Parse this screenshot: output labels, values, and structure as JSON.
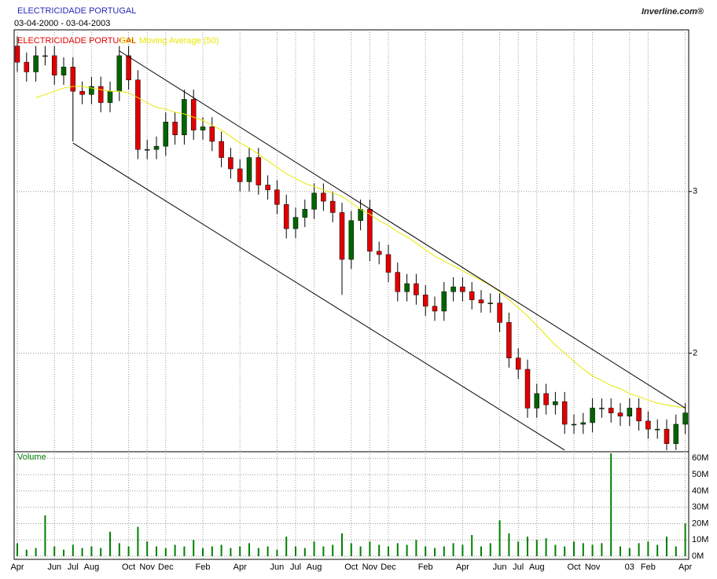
{
  "chart_data": {
    "type": "candlestick",
    "title": "ELECTRICIDADE PORTUGAL",
    "subtitle": "03-04-2000 - 03-04-2003",
    "brand": "Inverline.com®",
    "grid": true,
    "categories": [
      "Apr",
      null,
      null,
      null,
      "Jun",
      null,
      "Jul",
      null,
      "Aug",
      null,
      null,
      null,
      "Oct",
      null,
      "Nov",
      null,
      "Dec",
      null,
      null,
      null,
      "Feb",
      null,
      null,
      null,
      "Apr",
      null,
      null,
      null,
      "Jun",
      null,
      "Jul",
      null,
      "Aug",
      null,
      null,
      null,
      "Oct",
      null,
      "Nov",
      null,
      "Dec",
      null,
      null,
      null,
      "Feb",
      null,
      null,
      null,
      "Apr",
      null,
      null,
      null,
      "Jun",
      null,
      "Jul",
      null,
      "Aug",
      null,
      null,
      null,
      "Oct",
      null,
      "Nov",
      null,
      null,
      null,
      "03",
      null,
      "Feb",
      null,
      null,
      null,
      "Apr"
    ],
    "series": [
      {
        "name": "ELECTRICIDADE PORTUGAL",
        "up_color": "#006400",
        "down_color": "#e00000",
        "label_color": "#e00000",
        "open": [
          3.9,
          3.8,
          3.74,
          3.84,
          3.84,
          3.72,
          3.77,
          3.62,
          3.6,
          3.65,
          3.55,
          3.62,
          3.84,
          3.69,
          3.26,
          3.26,
          3.28,
          3.43,
          3.35,
          3.57,
          3.38,
          3.4,
          3.31,
          3.21,
          3.14,
          3.06,
          3.21,
          3.04,
          3.01,
          2.92,
          2.77,
          2.84,
          2.89,
          2.99,
          2.94,
          2.87,
          2.58,
          2.82,
          2.89,
          2.63,
          2.61,
          2.5,
          2.38,
          2.43,
          2.36,
          2.29,
          2.26,
          2.38,
          2.41,
          2.38,
          2.33,
          2.31,
          2.31,
          2.19,
          1.97,
          1.9,
          1.66,
          1.75,
          1.68,
          1.7,
          1.56,
          1.56,
          1.57,
          1.66,
          1.66,
          1.63,
          1.61,
          1.66,
          1.58,
          1.53,
          1.53,
          1.44,
          1.56
        ],
        "high": [
          3.96,
          3.86,
          3.9,
          3.9,
          3.9,
          3.83,
          3.83,
          3.68,
          3.71,
          3.71,
          3.68,
          3.9,
          3.9,
          3.75,
          3.32,
          3.34,
          3.49,
          3.49,
          3.63,
          3.63,
          3.46,
          3.46,
          3.37,
          3.27,
          3.2,
          3.27,
          3.27,
          3.1,
          3.07,
          2.98,
          2.9,
          2.95,
          3.05,
          3.05,
          3.0,
          2.93,
          2.88,
          2.95,
          2.95,
          2.69,
          2.67,
          2.56,
          2.49,
          2.49,
          2.42,
          2.35,
          2.44,
          2.47,
          2.47,
          2.44,
          2.39,
          2.37,
          2.37,
          2.25,
          2.03,
          1.96,
          1.81,
          1.81,
          1.76,
          1.76,
          1.62,
          1.63,
          1.72,
          1.72,
          1.72,
          1.69,
          1.72,
          1.72,
          1.64,
          1.59,
          1.59,
          1.62,
          1.69
        ],
        "low": [
          3.74,
          3.68,
          3.68,
          3.78,
          3.66,
          3.66,
          3.31,
          3.54,
          3.54,
          3.49,
          3.49,
          3.56,
          3.63,
          3.2,
          3.2,
          3.2,
          3.22,
          3.29,
          3.29,
          3.32,
          3.32,
          3.25,
          3.15,
          3.08,
          3.0,
          3.0,
          2.98,
          2.95,
          2.86,
          2.71,
          2.71,
          2.78,
          2.83,
          2.88,
          2.81,
          2.36,
          2.52,
          2.76,
          2.57,
          2.55,
          2.44,
          2.32,
          2.32,
          2.3,
          2.23,
          2.2,
          2.2,
          2.32,
          2.32,
          2.27,
          2.25,
          2.25,
          2.13,
          1.91,
          1.84,
          1.6,
          1.6,
          1.62,
          1.62,
          1.5,
          1.5,
          1.5,
          1.51,
          1.6,
          1.57,
          1.55,
          1.55,
          1.52,
          1.47,
          1.47,
          1.4,
          1.4,
          1.5
        ],
        "close": [
          3.8,
          3.74,
          3.84,
          3.84,
          3.72,
          3.77,
          3.62,
          3.6,
          3.65,
          3.55,
          3.62,
          3.84,
          3.69,
          3.26,
          3.26,
          3.28,
          3.43,
          3.35,
          3.57,
          3.38,
          3.4,
          3.31,
          3.21,
          3.14,
          3.06,
          3.21,
          3.04,
          3.01,
          2.92,
          2.77,
          2.84,
          2.89,
          2.99,
          2.94,
          2.87,
          2.58,
          2.82,
          2.89,
          2.63,
          2.61,
          2.5,
          2.38,
          2.43,
          2.36,
          2.29,
          2.26,
          2.38,
          2.41,
          2.38,
          2.33,
          2.31,
          2.31,
          2.19,
          1.97,
          1.9,
          1.66,
          1.75,
          1.68,
          1.7,
          1.56,
          1.56,
          1.57,
          1.66,
          1.66,
          1.63,
          1.61,
          1.66,
          1.58,
          1.53,
          1.53,
          1.44,
          1.56,
          1.63
        ]
      },
      {
        "name": "Sim. Moving Average (50)",
        "color": "#e8e800",
        "values": [
          null,
          null,
          3.58,
          3.6,
          3.62,
          3.64,
          3.65,
          3.65,
          3.64,
          3.63,
          3.62,
          3.62,
          3.61,
          3.58,
          3.55,
          3.52,
          3.51,
          3.49,
          3.48,
          3.46,
          3.44,
          3.41,
          3.38,
          3.34,
          3.3,
          3.27,
          3.23,
          3.19,
          3.15,
          3.11,
          3.08,
          3.05,
          3.03,
          3.01,
          2.99,
          2.97,
          2.93,
          2.89,
          2.86,
          2.82,
          2.79,
          2.75,
          2.72,
          2.68,
          2.64,
          2.6,
          2.57,
          2.54,
          2.51,
          2.48,
          2.45,
          2.42,
          2.38,
          2.33,
          2.28,
          2.23,
          2.17,
          2.11,
          2.05,
          2.0,
          1.95,
          1.9,
          1.86,
          1.83,
          1.8,
          1.78,
          1.75,
          1.73,
          1.71,
          1.69,
          1.68,
          1.67,
          1.66
        ]
      }
    ],
    "ylim": [
      1.39,
      4.0
    ],
    "yticks": [
      2,
      3
    ],
    "trendlines": {
      "color": "#000000",
      "lines": [
        {
          "from": [
            11,
            3.87
          ],
          "to": [
            72,
            1.66
          ]
        },
        {
          "from": [
            6,
            3.3
          ],
          "to": [
            59,
            1.4
          ]
        }
      ]
    },
    "volume": {
      "name": "Volume",
      "color": "#008000",
      "values": [
        8,
        4,
        5,
        25,
        6,
        4,
        7,
        5,
        6,
        5,
        15,
        8,
        6,
        18,
        9,
        6,
        5,
        7,
        6,
        10,
        5,
        6,
        7,
        5,
        6,
        8,
        5,
        6,
        4,
        12,
        6,
        5,
        9,
        6,
        7,
        14,
        8,
        6,
        9,
        7,
        6,
        8,
        7,
        10,
        6,
        5,
        6,
        8,
        7,
        13,
        6,
        8,
        22,
        14,
        9,
        12,
        10,
        11,
        7,
        6,
        9,
        8,
        7,
        8,
        63,
        6,
        5,
        8,
        9,
        7,
        12,
        6,
        20
      ],
      "ylim": [
        0,
        64
      ],
      "yticks": [
        {
          "value": 0,
          "label": "0M"
        },
        {
          "value": 10,
          "label": "10M"
        },
        {
          "value": 20,
          "label": "20M"
        },
        {
          "value": 30,
          "label": "30M"
        },
        {
          "value": 40,
          "label": "40M"
        },
        {
          "value": 50,
          "label": "50M"
        },
        {
          "value": 60,
          "label": "60M"
        }
      ]
    }
  }
}
